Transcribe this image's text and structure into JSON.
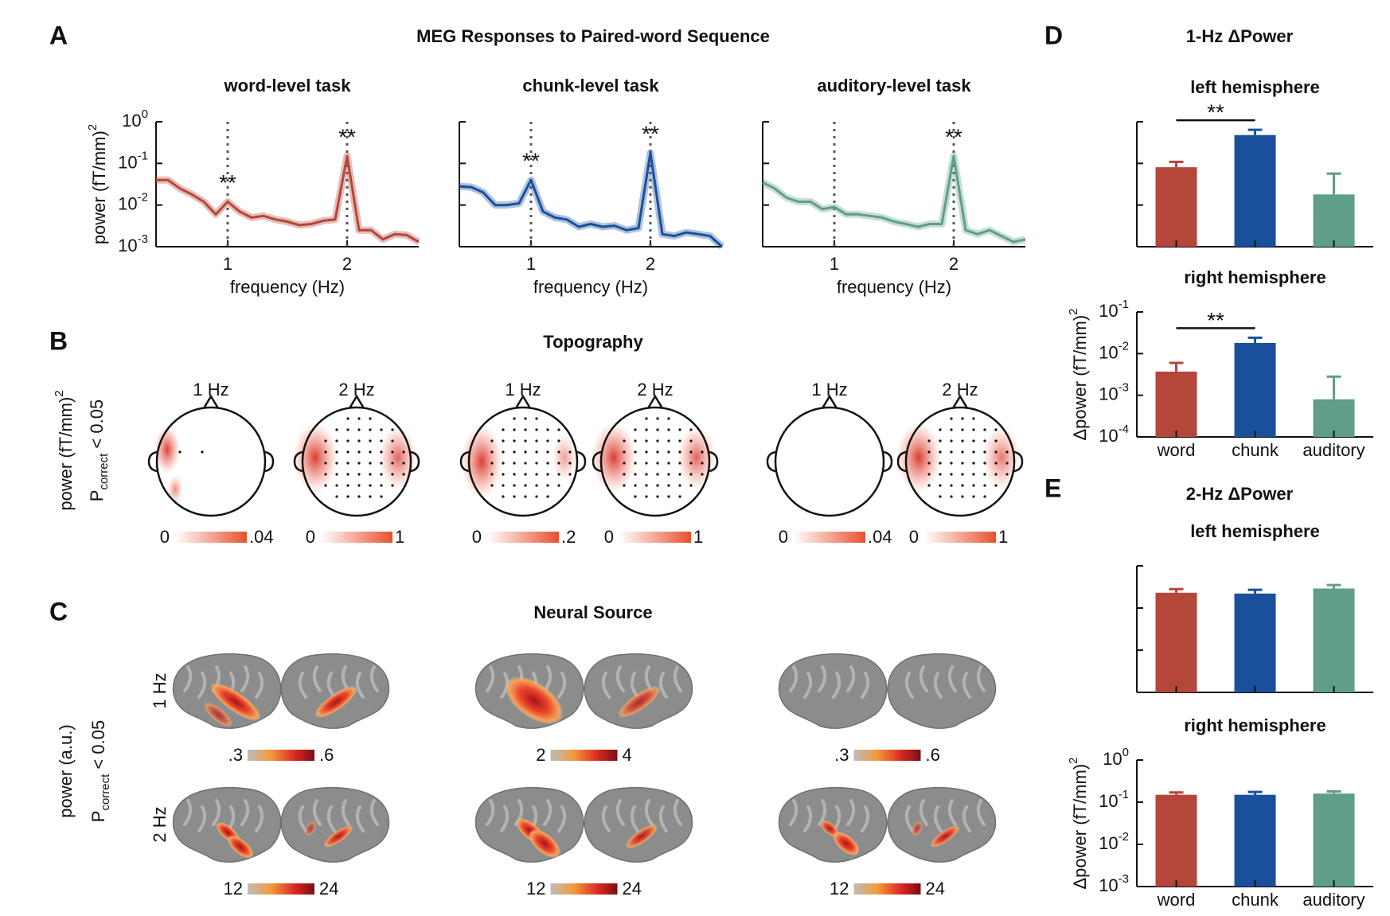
{
  "figure": {
    "title": "MEG Responses to Paired-word Sequence",
    "panel_labels": [
      "A",
      "B",
      "C",
      "D",
      "E"
    ],
    "section_titles": {
      "B": "Topography",
      "C": "Neural Source",
      "D": "1-Hz ΔPower",
      "E": "2-Hz ΔPower"
    }
  },
  "chart_data": [
    {
      "type": "line",
      "title": "word-level task",
      "xlabel": "frequency (Hz)",
      "ylabel": "power (fT/mm)",
      "ylabel_sup": "2",
      "x": [
        0.4,
        0.5,
        0.6,
        0.7,
        0.8,
        0.9,
        1.0,
        1.1,
        1.2,
        1.3,
        1.4,
        1.5,
        1.6,
        1.7,
        1.8,
        1.9,
        2.0,
        2.1,
        2.2,
        2.3,
        2.4,
        2.5,
        2.6
      ],
      "values": [
        0.04,
        0.04,
        0.025,
        0.018,
        0.012,
        0.006,
        0.012,
        0.007,
        0.005,
        0.0055,
        0.0045,
        0.004,
        0.0033,
        0.0035,
        0.0042,
        0.0045,
        0.15,
        0.0025,
        0.0025,
        0.0015,
        0.002,
        0.0019,
        0.0013
      ],
      "color": "#b5463a",
      "log_y": true,
      "xlim": [
        0.4,
        2.6
      ],
      "ylim": [
        0.001,
        1
      ],
      "xticks": [
        1,
        2
      ],
      "yticks": [
        {
          "value": 0.001,
          "label": "10",
          "sup": "-3"
        },
        {
          "value": 0.01,
          "label": "10",
          "sup": "-2"
        },
        {
          "value": 0.1,
          "label": "10",
          "sup": "-1"
        },
        {
          "value": 1,
          "label": "10",
          "sup": "0"
        }
      ],
      "vlines": [
        1,
        2
      ],
      "annotations": [
        {
          "text": "**",
          "x": 1
        },
        {
          "text": "**",
          "x": 2
        }
      ]
    },
    {
      "type": "line",
      "title": "chunk-level task",
      "xlabel": "frequency (Hz)",
      "x": [
        0.4,
        0.5,
        0.6,
        0.7,
        0.8,
        0.9,
        1.0,
        1.1,
        1.2,
        1.3,
        1.4,
        1.5,
        1.6,
        1.7,
        1.8,
        1.9,
        2.0,
        2.1,
        2.2,
        2.3,
        2.4,
        2.5,
        2.6
      ],
      "values": [
        0.028,
        0.027,
        0.02,
        0.01,
        0.01,
        0.011,
        0.04,
        0.007,
        0.005,
        0.0045,
        0.003,
        0.0035,
        0.003,
        0.0032,
        0.0025,
        0.0028,
        0.18,
        0.002,
        0.0018,
        0.0022,
        0.002,
        0.0018,
        0.001
      ],
      "color": "#1a4f9c",
      "log_y": true,
      "xlim": [
        0.4,
        2.6
      ],
      "ylim": [
        0.001,
        1
      ],
      "xticks": [
        1,
        2
      ],
      "yticks": [
        0.001,
        0.01,
        0.1,
        1
      ],
      "ytick_labels": false,
      "vlines": [
        1,
        2
      ],
      "annotations": [
        {
          "text": "**",
          "x": 1
        },
        {
          "text": "**",
          "x": 2
        }
      ]
    },
    {
      "type": "line",
      "title": "auditory-level task",
      "xlabel": "frequency (Hz)",
      "x": [
        0.4,
        0.5,
        0.6,
        0.7,
        0.8,
        0.9,
        1.0,
        1.1,
        1.2,
        1.3,
        1.4,
        1.5,
        1.6,
        1.7,
        1.8,
        1.9,
        2.0,
        2.1,
        2.2,
        2.3,
        2.4,
        2.5,
        2.6
      ],
      "values": [
        0.035,
        0.025,
        0.015,
        0.012,
        0.012,
        0.008,
        0.009,
        0.006,
        0.006,
        0.0055,
        0.005,
        0.004,
        0.0035,
        0.003,
        0.0035,
        0.0035,
        0.15,
        0.0025,
        0.002,
        0.0025,
        0.0018,
        0.0013,
        0.0015
      ],
      "color": "#5f9e88",
      "log_y": true,
      "xlim": [
        0.4,
        2.6
      ],
      "ylim": [
        0.001,
        1
      ],
      "xticks": [
        1,
        2
      ],
      "yticks": [
        0.001,
        0.01,
        0.1,
        1
      ],
      "ytick_labels": false,
      "vlines": [
        1,
        2
      ],
      "annotations": [
        {
          "text": "**",
          "x": 2
        }
      ]
    },
    {
      "type": "bar",
      "title": "left hemisphere",
      "categories": [
        null,
        null,
        null
      ],
      "values": [
        0.0081,
        0.048,
        0.0018
      ],
      "errors": [
        0.0028,
        0.016,
        0.0039
      ],
      "colors": [
        "#b5463a",
        "#1a4f9c",
        "#5f9e88"
      ],
      "log_y": true,
      "ylim": [
        0.0001,
        0.1
      ],
      "yticks": [
        0.0001,
        0.001,
        0.01,
        0.1
      ],
      "ytick_labels": false,
      "annotations": [
        {
          "text": "**",
          "from": 0,
          "to": 1
        }
      ]
    },
    {
      "type": "bar",
      "title": "right hemisphere",
      "categories": [
        "word",
        "chunk",
        "auditory"
      ],
      "ylabel": "Δpower (fT/mm)",
      "ylabel_sup": "2",
      "values": [
        0.0037,
        0.018,
        0.0008
      ],
      "errors": [
        0.0023,
        0.006,
        0.002
      ],
      "colors": [
        "#b5463a",
        "#1a4f9c",
        "#5f9e88"
      ],
      "log_y": true,
      "ylim": [
        0.0001,
        0.1
      ],
      "yticks": [
        {
          "value": 0.0001,
          "label": "10",
          "sup": "-4"
        },
        {
          "value": 0.001,
          "label": "10",
          "sup": "-3"
        },
        {
          "value": 0.01,
          "label": "10",
          "sup": "-2"
        },
        {
          "value": 0.1,
          "label": "10",
          "sup": "-1"
        }
      ],
      "annotations": [
        {
          "text": "**",
          "from": 0,
          "to": 1
        }
      ]
    },
    {
      "type": "bar",
      "title": "left hemisphere",
      "categories": [
        null,
        null,
        null
      ],
      "values": [
        0.23,
        0.22,
        0.29
      ],
      "errors": [
        0.05,
        0.05,
        0.06
      ],
      "colors": [
        "#b5463a",
        "#1a4f9c",
        "#5f9e88"
      ],
      "log_y": true,
      "ylim": [
        0.001,
        1
      ],
      "yticks": [
        0.001,
        0.01,
        0.1,
        1
      ],
      "ytick_labels": false
    },
    {
      "type": "bar",
      "title": "right hemisphere",
      "categories": [
        "word",
        "chunk",
        "auditory"
      ],
      "ylabel": "Δpower (fT/mm)",
      "ylabel_sup": "2",
      "values": [
        0.15,
        0.15,
        0.16
      ],
      "errors": [
        0.02,
        0.025,
        0.02
      ],
      "colors": [
        "#b5463a",
        "#1a4f9c",
        "#5f9e88"
      ],
      "log_y": true,
      "ylim": [
        0.001,
        1
      ],
      "yticks": [
        {
          "value": 0.001,
          "label": "10",
          "sup": "-3"
        },
        {
          "value": 0.01,
          "label": "10",
          "sup": "-2"
        },
        {
          "value": 0.1,
          "label": "10",
          "sup": "-1"
        },
        {
          "value": 1,
          "label": "10",
          "sup": "0"
        }
      ]
    }
  ],
  "topography": {
    "ylabel": "power (fT/mm)",
    "ylabel_sup": "2",
    "ylabel2": "P",
    "ylabel2_sub": "correct",
    "ylabel2_tail": " < 0.05",
    "maps": [
      {
        "label": "1 Hz",
        "cbar_min": "0",
        "cbar_max": ".04"
      },
      {
        "label": "2 Hz",
        "cbar_min": "0",
        "cbar_max": "1"
      },
      {
        "label": "1 Hz",
        "cbar_min": "0",
        "cbar_max": ".2"
      },
      {
        "label": "2 Hz",
        "cbar_min": "0",
        "cbar_max": "1"
      },
      {
        "label": "1 Hz",
        "cbar_min": "0",
        "cbar_max": ".04"
      },
      {
        "label": "2 Hz",
        "cbar_min": "0",
        "cbar_max": "1"
      }
    ]
  },
  "neural_source": {
    "ylabel": "power (a.u.)",
    "ylabel2": "P",
    "ylabel2_sub": "correct",
    "ylabel2_tail": " < 0.05",
    "rows": [
      "1 Hz",
      "2 Hz"
    ],
    "colorbars": [
      {
        "min": ".3",
        "max": ".6"
      },
      {
        "min": "2",
        "max": "4"
      },
      {
        "min": ".3",
        "max": ".6"
      },
      {
        "min": "12",
        "max": "24"
      },
      {
        "min": "12",
        "max": "24"
      },
      {
        "min": "12",
        "max": "24"
      }
    ]
  }
}
